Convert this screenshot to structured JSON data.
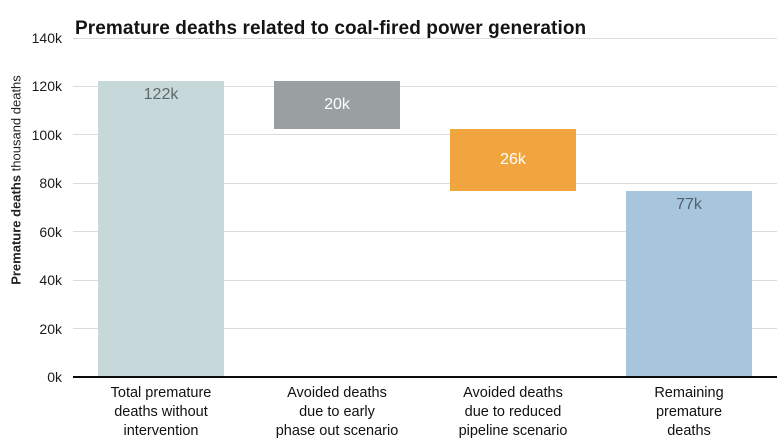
{
  "title": "Premature deaths related to coal-fired power generation",
  "y_axis": {
    "label_bold": "Premature deaths",
    "label_regular": "thousand deaths",
    "tick_values": [
      0,
      20,
      40,
      60,
      80,
      100,
      120,
      140
    ],
    "tick_labels": [
      "0k",
      "20k",
      "40k",
      "60k",
      "80k",
      "100k",
      "120k",
      "140k"
    ]
  },
  "colors": {
    "background": "#ffffff",
    "gridline": "#dcdcdc",
    "axis_line": "#0a0a0a",
    "title_text": "#141414",
    "tick_text": "#1c1c1c",
    "category_text": "#111111"
  },
  "chart_data": {
    "type": "bar",
    "subtype": "waterfall",
    "title": "Premature deaths related to coal-fired power generation",
    "ylabel": "Premature deaths thousand deaths",
    "ylim": [
      0,
      140
    ],
    "yticks": [
      0,
      20,
      40,
      60,
      80,
      100,
      120,
      140
    ],
    "grid": true,
    "legend": false,
    "categories": [
      "Total premature deaths without intervention",
      "Avoided deaths due to early phase out scenario",
      "Avoided deaths due to reduced pipeline scenario",
      "Remaining premature deaths"
    ],
    "values": [
      122,
      20,
      26,
      77
    ],
    "bars": [
      {
        "category_lines": [
          "Total premature",
          "deaths without",
          "intervention"
        ],
        "value_label": "122k",
        "value_thousands": 122,
        "start": 0,
        "end": 122.3,
        "color": "#c6d8da",
        "label_color": "#5f696b",
        "label_position": "top"
      },
      {
        "category_lines": [
          "Avoided deaths",
          "due to early",
          "phase out scenario"
        ],
        "value_label": "20k",
        "value_thousands": 20,
        "start": 102.4,
        "end": 122.3,
        "color": "#9aa0a0",
        "label_color": "#ffffff",
        "label_position": "center"
      },
      {
        "category_lines": [
          "Avoided deaths",
          "due to reduced",
          "pipeline scenario"
        ],
        "value_label": "26k",
        "value_thousands": 26,
        "start": 76.8,
        "end": 102.4,
        "color": "#f1a53e",
        "label_color": "#ffffff",
        "label_position": "center"
      },
      {
        "category_lines": [
          "Remaining",
          "premature",
          "deaths"
        ],
        "value_label": "77k",
        "value_thousands": 77,
        "start": 0,
        "end": 76.8,
        "color": "#a7c6dd",
        "label_color": "#54606b",
        "label_position": "top"
      }
    ]
  }
}
